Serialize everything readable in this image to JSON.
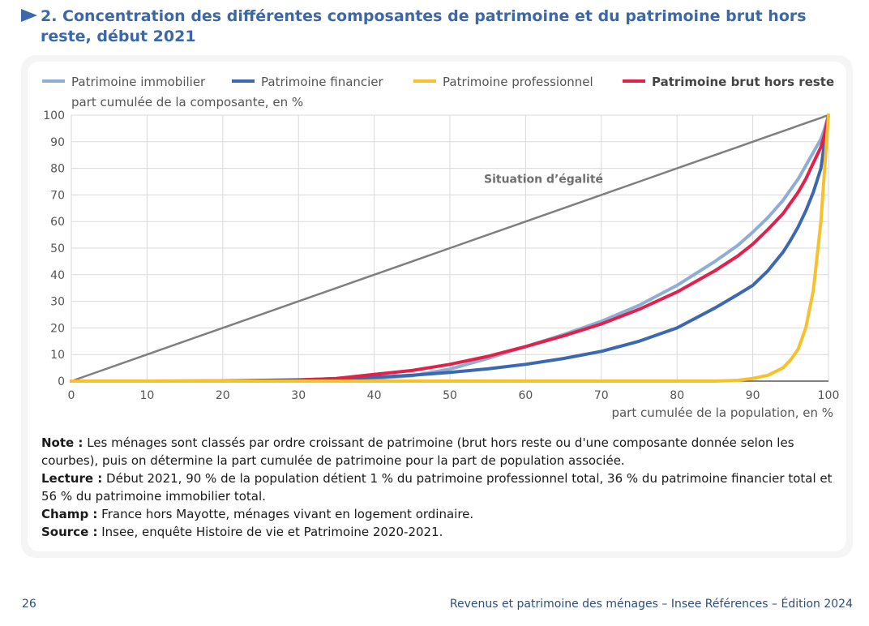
{
  "header": {
    "title": "2. Concentration des différentes composantes de patrimoine et du patrimoine brut hors reste, début 2021",
    "icon": "triangle-right-icon"
  },
  "chart_data": {
    "type": "line",
    "title": "2. Concentration des différentes composantes de patrimoine et du patrimoine brut hors reste, début 2021",
    "xlabel": "part cumulée de la population, en %",
    "ylabel": "part cumulée de la composante, en %",
    "xlim": [
      0,
      100
    ],
    "ylim": [
      0,
      100
    ],
    "x_ticks": [
      "0",
      "10",
      "20",
      "30",
      "40",
      "50",
      "60",
      "70",
      "80",
      "90",
      "100"
    ],
    "y_ticks": [
      "0",
      "10",
      "20",
      "30",
      "40",
      "50",
      "60",
      "70",
      "80",
      "90",
      "100"
    ],
    "grid": true,
    "legend_position": "top",
    "annotation": "Situation d’égalité",
    "x": [
      0,
      10,
      20,
      30,
      35,
      40,
      45,
      50,
      55,
      60,
      65,
      70,
      75,
      80,
      85,
      88,
      90,
      92,
      94,
      95,
      96,
      97,
      98,
      99,
      99.5,
      100
    ],
    "series": [
      {
        "name": "Situation d’égalité",
        "color": "#7f7f7f",
        "values": [
          0,
          10,
          20,
          30,
          35,
          40,
          45,
          50,
          55,
          60,
          65,
          70,
          75,
          80,
          85,
          88,
          90,
          92,
          94,
          95,
          96,
          97,
          98,
          99,
          99.5,
          100
        ]
      },
      {
        "name": "Patrimoine immobilier",
        "color": "#8eaed6",
        "values": [
          0,
          0,
          0,
          0.3,
          0.6,
          1,
          2,
          4.5,
          8.5,
          13,
          17.5,
          22.5,
          28.5,
          36,
          45,
          51,
          56,
          61.5,
          68,
          72,
          76,
          81,
          86,
          91,
          95,
          100
        ]
      },
      {
        "name": "Patrimoine financier",
        "color": "#3b68b0",
        "values": [
          0,
          0,
          0.1,
          0.5,
          0.9,
          1.4,
          2.2,
          3.3,
          4.6,
          6.3,
          8.5,
          11.2,
          15,
          20,
          27.5,
          32.5,
          36,
          41.5,
          48.5,
          53,
          58,
          64,
          71,
          80,
          90,
          100
        ]
      },
      {
        "name": "Patrimoine professionnel",
        "color": "#f9c02e",
        "values": [
          0,
          0,
          0,
          0,
          0,
          0,
          0,
          0,
          0,
          0,
          0,
          0,
          0,
          0,
          0,
          0.3,
          1,
          2.2,
          5,
          8,
          12,
          20,
          34,
          60,
          80,
          100
        ]
      },
      {
        "name": "Patrimoine brut hors reste",
        "color": "#e2204a",
        "values": [
          0,
          0,
          0,
          0.4,
          1,
          2.5,
          4,
          6.3,
          9.3,
          13,
          17,
          21.5,
          27,
          33.5,
          41.5,
          47,
          51.5,
          57,
          63,
          67,
          71,
          76,
          82,
          88,
          93,
          100
        ]
      }
    ]
  },
  "legend": [
    {
      "label": "Patrimoine immobilier",
      "color": "#8eaed6",
      "bold": false
    },
    {
      "label": "Patrimoine financier",
      "color": "#3b68b0",
      "bold": false
    },
    {
      "label": "Patrimoine professionnel",
      "color": "#f9c02e",
      "bold": false
    },
    {
      "label": "Patrimoine brut hors reste",
      "color": "#e2204a",
      "bold": true
    }
  ],
  "notes": {
    "note_label": "Note :",
    "note_text": " Les ménages sont classés par ordre croissant de patrimoine (brut hors reste ou d'une composante donnée selon les courbes), puis on détermine la part cumulée de patrimoine pour la part de population associée.",
    "lecture_label": "Lecture :",
    "lecture_text": " Début 2021, 90 % de la population détient 1 % du patrimoine professionnel total, 36 % du patrimoine financier total et 56 % du patrimoine immobilier total.",
    "champ_label": "Champ :",
    "champ_text": " France hors Mayotte, ménages vivant en logement ordinaire.",
    "source_label": "Source :",
    "source_text": " Insee, enquête Histoire de vie et Patrimoine 2020-2021."
  },
  "footer": {
    "page_number": "26",
    "reference": "Revenus et patrimoine des ménages – Insee Références – Édition 2024"
  }
}
